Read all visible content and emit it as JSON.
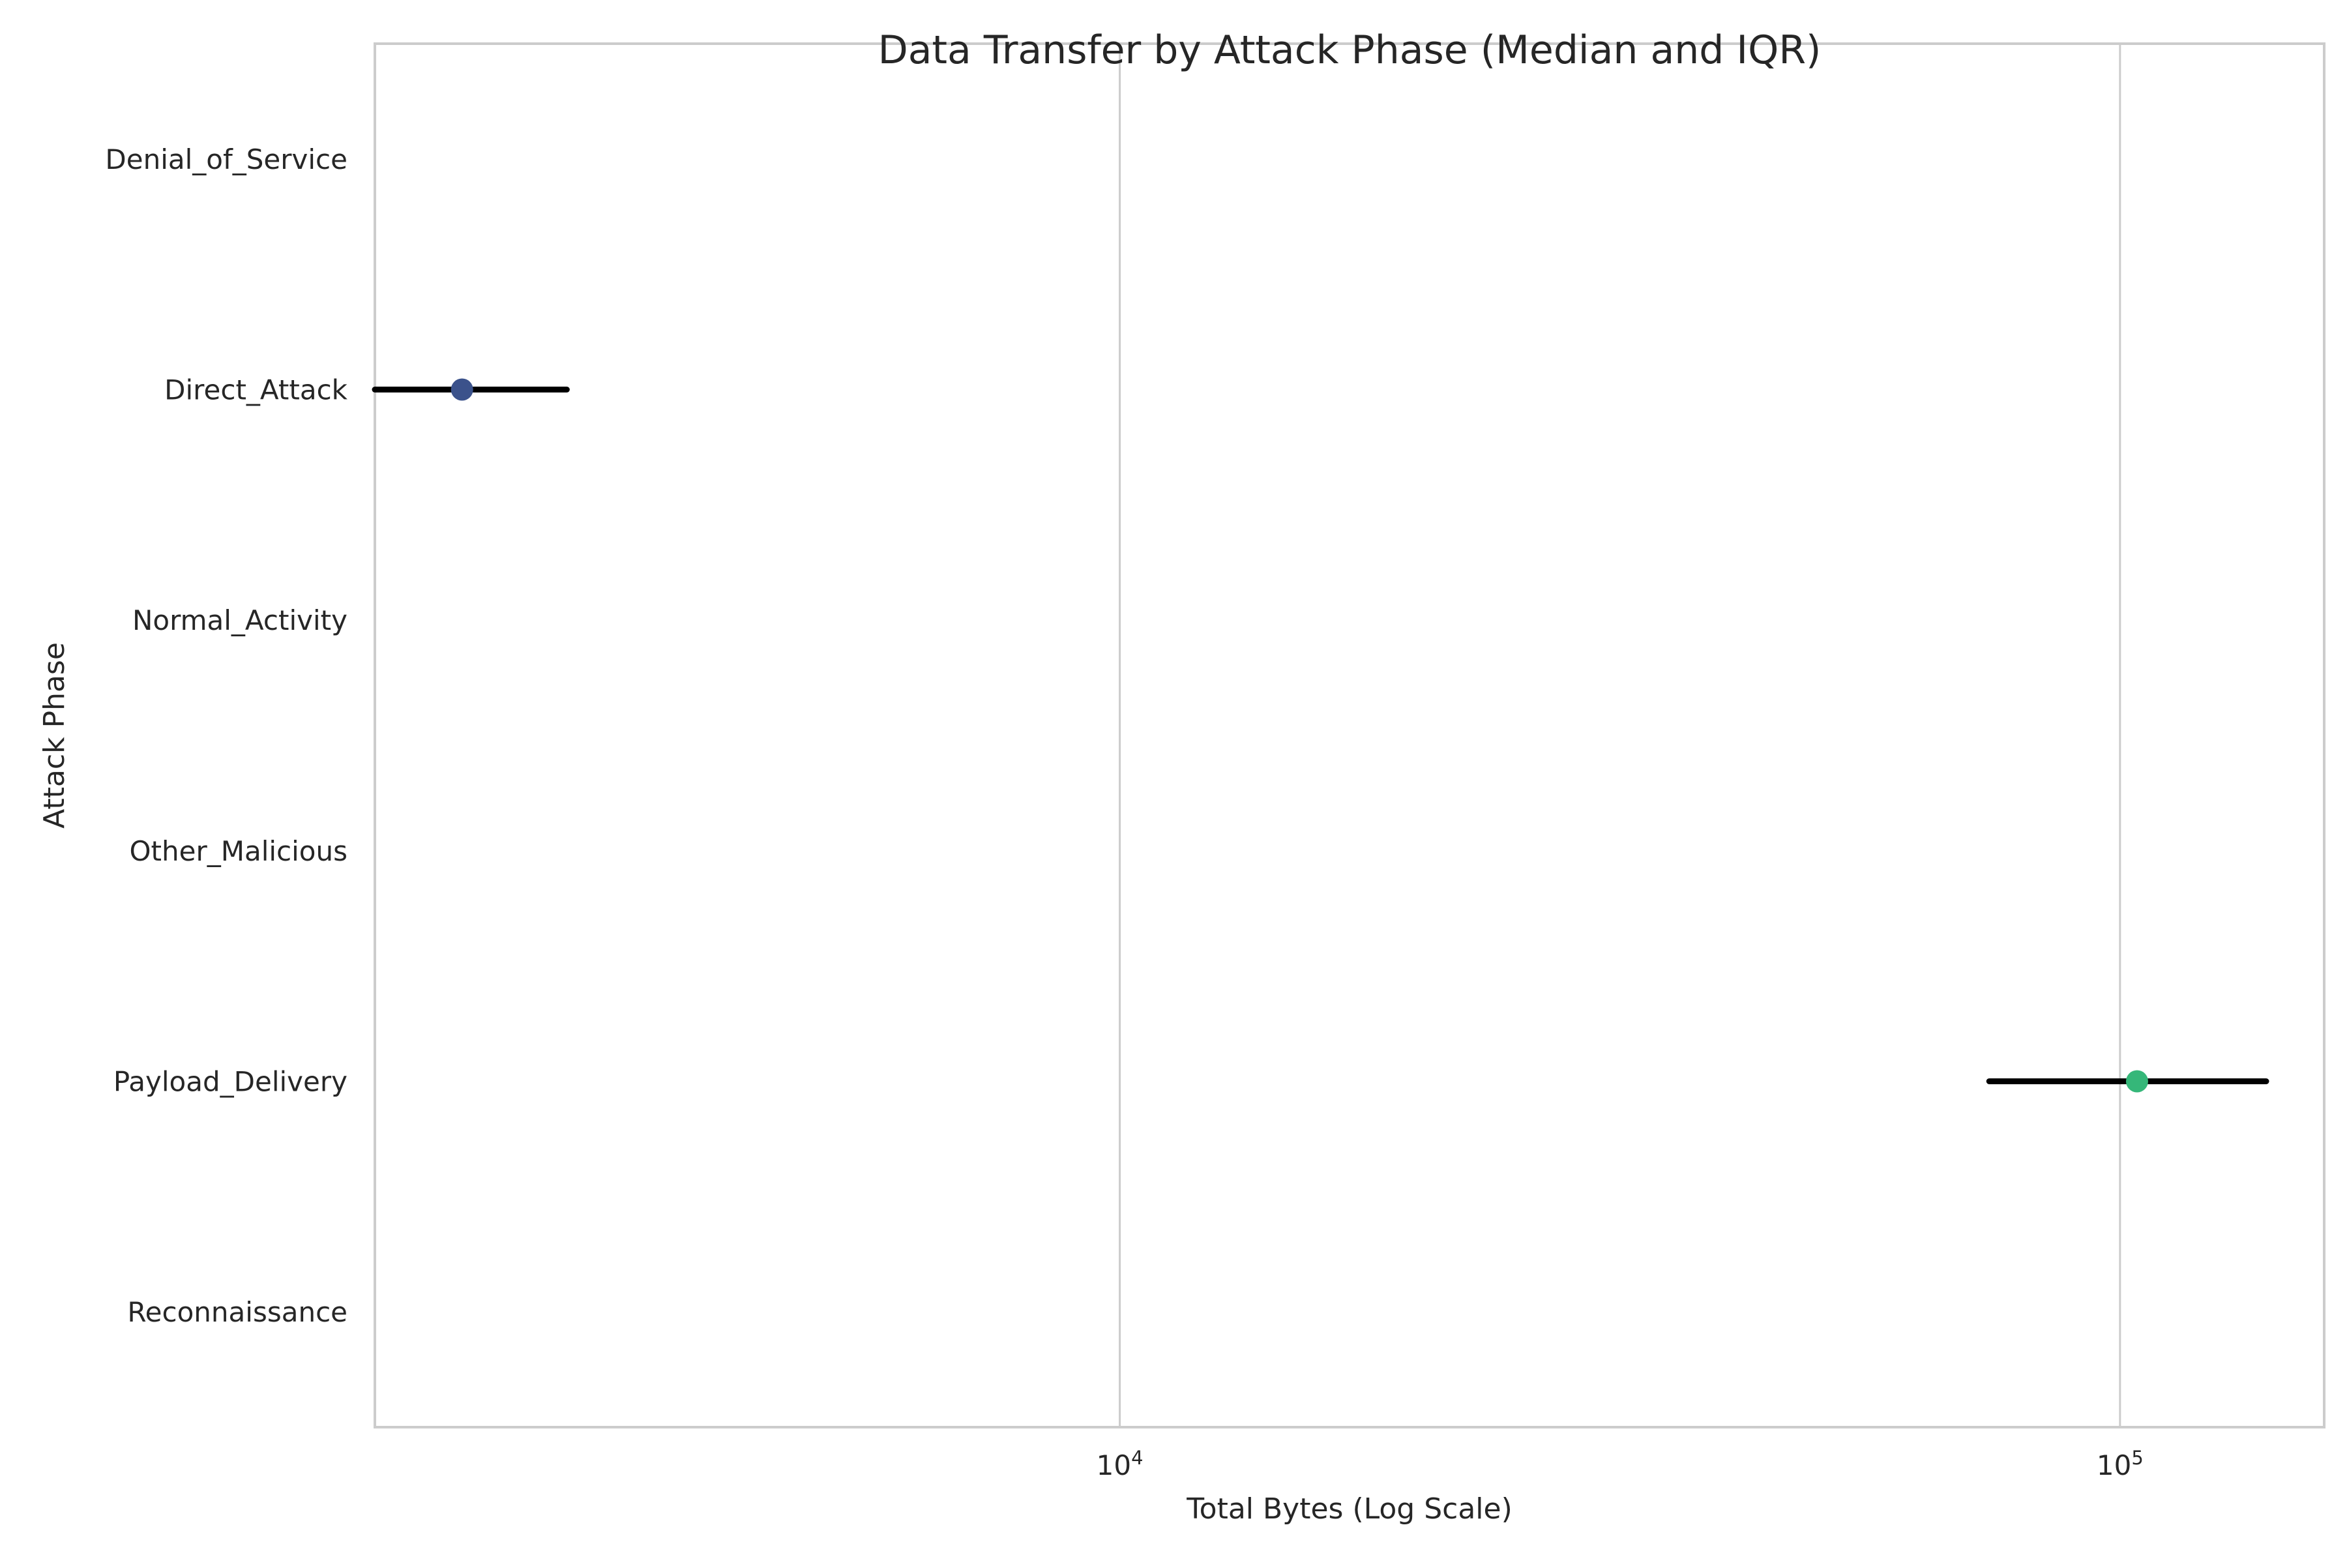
{
  "chart_data": {
    "type": "point-range",
    "title": "Data Transfer by Attack Phase (Median and IQR)",
    "xlabel": "Total Bytes (Log Scale)",
    "ylabel": "Attack Phase",
    "x_scale": "log",
    "xlim": [
      1800,
      160000
    ],
    "grid": "vertical",
    "categories": [
      "Denial_of_Service",
      "Direct_Attack",
      "Normal_Activity",
      "Other_Malicious",
      "Payload_Delivery",
      "Reconnaissance"
    ],
    "x_ticks": [
      {
        "value": 10000,
        "base": "10",
        "exp": "4"
      },
      {
        "value": 100000,
        "base": "10",
        "exp": "5"
      }
    ],
    "points": [
      {
        "category": "Direct_Attack",
        "median": 2200,
        "q1": 1800,
        "q3": 2800,
        "color": "#3b528b"
      },
      {
        "category": "Payload_Delivery",
        "median": 104000,
        "q1": 74000,
        "q3": 140000,
        "color": "#35b779"
      }
    ],
    "colors": {
      "errorbar": "#000000",
      "grid": "#cccccc",
      "spine": "#cccccc"
    }
  }
}
